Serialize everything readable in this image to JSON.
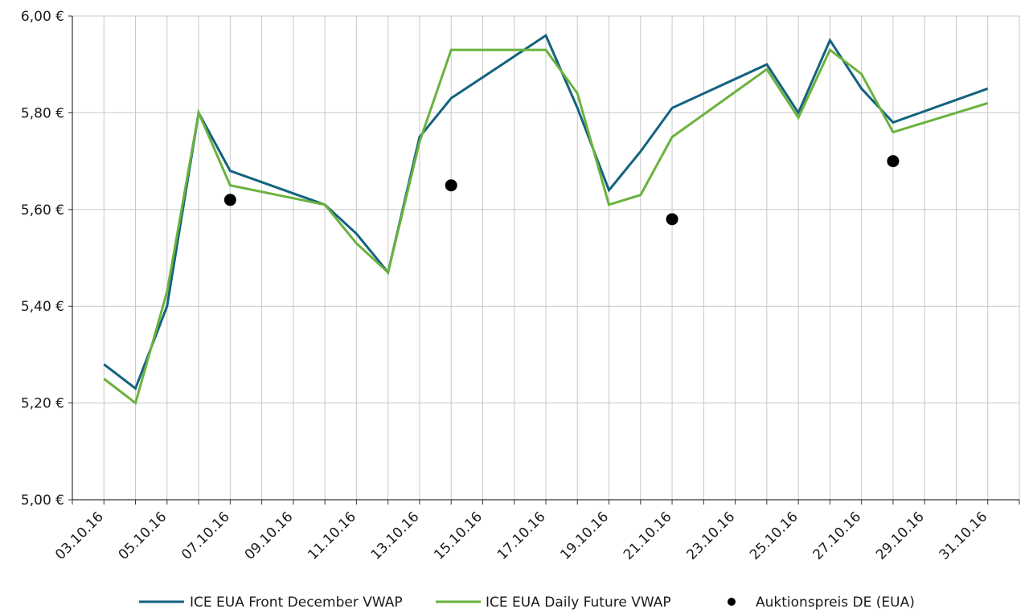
{
  "chart_data": {
    "type": "line",
    "title": "",
    "xlabel": "",
    "ylabel": "",
    "ylim": [
      5.0,
      6.0
    ],
    "ytick_values": [
      5.0,
      5.2,
      5.4,
      5.6,
      5.8,
      6.0
    ],
    "ytick_labels": [
      "5,00 €",
      "5,20 €",
      "5,40 €",
      "5,60 €",
      "5,80 €",
      "6,00 €"
    ],
    "x_range": [
      "2016-10-02",
      "2016-11-01"
    ],
    "xtick_dates": [
      "2016-10-03",
      "2016-10-05",
      "2016-10-07",
      "2016-10-09",
      "2016-10-11",
      "2016-10-13",
      "2016-10-15",
      "2016-10-17",
      "2016-10-19",
      "2016-10-21",
      "2016-10-23",
      "2016-10-25",
      "2016-10-27",
      "2016-10-29",
      "2016-10-31"
    ],
    "xtick_labels": [
      "03.10.16",
      "05.10.16",
      "07.10.16",
      "09.10.16",
      "11.10.16",
      "13.10.16",
      "15.10.16",
      "17.10.16",
      "19.10.16",
      "21.10.16",
      "23.10.16",
      "25.10.16",
      "27.10.16",
      "29.10.16",
      "31.10.16"
    ],
    "grid": true,
    "legend_position": "bottom",
    "series": [
      {
        "name": "ICE EUA Front December VWAP",
        "kind": "line",
        "color": "#13627f",
        "x": [
          "2016-10-03",
          "2016-10-04",
          "2016-10-05",
          "2016-10-06",
          "2016-10-07",
          "2016-10-10",
          "2016-10-11",
          "2016-10-12",
          "2016-10-13",
          "2016-10-14",
          "2016-10-17",
          "2016-10-18",
          "2016-10-19",
          "2016-10-20",
          "2016-10-21",
          "2016-10-24",
          "2016-10-25",
          "2016-10-26",
          "2016-10-27",
          "2016-10-28",
          "2016-10-31"
        ],
        "values": [
          5.28,
          5.23,
          5.4,
          5.8,
          5.68,
          5.61,
          5.55,
          5.47,
          5.75,
          5.83,
          5.96,
          5.81,
          5.64,
          5.72,
          5.81,
          5.9,
          5.8,
          5.95,
          5.85,
          5.78,
          5.85
        ]
      },
      {
        "name": "ICE EUA Daily Future VWAP",
        "kind": "line",
        "color": "#6ab23d",
        "x": [
          "2016-10-03",
          "2016-10-04",
          "2016-10-05",
          "2016-10-06",
          "2016-10-07",
          "2016-10-10",
          "2016-10-11",
          "2016-10-12",
          "2016-10-13",
          "2016-10-14",
          "2016-10-17",
          "2016-10-18",
          "2016-10-19",
          "2016-10-20",
          "2016-10-21",
          "2016-10-24",
          "2016-10-25",
          "2016-10-26",
          "2016-10-27",
          "2016-10-28",
          "2016-10-31"
        ],
        "values": [
          5.25,
          5.2,
          5.43,
          5.8,
          5.65,
          5.61,
          5.53,
          5.47,
          5.74,
          5.93,
          5.93,
          5.84,
          5.61,
          5.63,
          5.75,
          5.89,
          5.79,
          5.93,
          5.88,
          5.76,
          5.82
        ]
      },
      {
        "name": "Auktionspreis DE (EUA)",
        "kind": "scatter",
        "color": "#000000",
        "x": [
          "2016-10-07",
          "2016-10-14",
          "2016-10-21",
          "2016-10-28"
        ],
        "values": [
          5.62,
          5.65,
          5.58,
          5.7
        ]
      }
    ]
  }
}
